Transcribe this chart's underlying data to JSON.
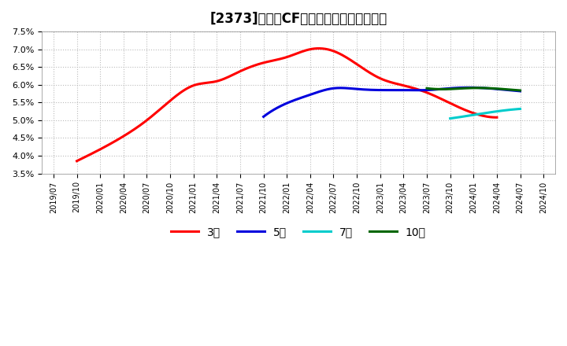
{
  "title": "[2373]　営業CFマージンの平均値の推移",
  "ylim": [
    0.035,
    0.075
  ],
  "yticks": [
    0.035,
    0.04,
    0.045,
    0.05,
    0.055,
    0.06,
    0.065,
    0.07,
    0.075
  ],
  "background_color": "#ffffff",
  "grid_color": "#bbbbbb",
  "series": {
    "3年": {
      "color": "#ff0000",
      "linewidth": 2.2,
      "data": [
        [
          "2019/10",
          0.0385
        ],
        [
          "2020/01",
          0.0418
        ],
        [
          "2020/04",
          0.0455
        ],
        [
          "2020/07",
          0.05
        ],
        [
          "2020/10",
          0.0555
        ],
        [
          "2021/01",
          0.0598
        ],
        [
          "2021/04",
          0.061
        ],
        [
          "2021/07",
          0.0638
        ],
        [
          "2021/10",
          0.0662
        ],
        [
          "2022/01",
          0.0678
        ],
        [
          "2022/04",
          0.07
        ],
        [
          "2022/07",
          0.0695
        ],
        [
          "2022/10",
          0.0658
        ],
        [
          "2023/01",
          0.0618
        ],
        [
          "2023/04",
          0.0598
        ],
        [
          "2023/07",
          0.0578
        ],
        [
          "2023/10",
          0.0548
        ],
        [
          "2024/01",
          0.052
        ],
        [
          "2024/04",
          0.0508
        ]
      ]
    },
    "5年": {
      "color": "#0000dd",
      "linewidth": 2.2,
      "data": [
        [
          "2021/10",
          0.051
        ],
        [
          "2022/01",
          0.0548
        ],
        [
          "2022/04",
          0.0572
        ],
        [
          "2022/07",
          0.059
        ],
        [
          "2022/10",
          0.0588
        ],
        [
          "2023/01",
          0.0585
        ],
        [
          "2023/04",
          0.0585
        ],
        [
          "2023/07",
          0.0585
        ],
        [
          "2023/10",
          0.059
        ],
        [
          "2024/01",
          0.0592
        ],
        [
          "2024/04",
          0.0588
        ],
        [
          "2024/07",
          0.0582
        ]
      ]
    },
    "7年": {
      "color": "#00cccc",
      "linewidth": 2.2,
      "data": [
        [
          "2023/10",
          0.0505
        ],
        [
          "2024/01",
          0.0515
        ],
        [
          "2024/04",
          0.0525
        ],
        [
          "2024/07",
          0.0532
        ]
      ]
    },
    "10年": {
      "color": "#006600",
      "linewidth": 2.2,
      "data": [
        [
          "2023/07",
          0.059
        ],
        [
          "2023/10",
          0.0588
        ],
        [
          "2024/01",
          0.0591
        ],
        [
          "2024/04",
          0.0589
        ],
        [
          "2024/07",
          0.0584
        ]
      ]
    }
  },
  "x_labels": [
    "2019/07",
    "2019/10",
    "2020/01",
    "2020/04",
    "2020/07",
    "2020/10",
    "2021/01",
    "2021/04",
    "2021/07",
    "2021/10",
    "2022/01",
    "2022/04",
    "2022/07",
    "2022/10",
    "2023/01",
    "2023/04",
    "2023/07",
    "2023/10",
    "2024/01",
    "2024/04",
    "2024/07",
    "2024/10"
  ],
  "legend_labels": [
    "3年",
    "5年",
    "7年",
    "10年"
  ],
  "legend_colors": [
    "#ff0000",
    "#0000dd",
    "#00cccc",
    "#006600"
  ]
}
